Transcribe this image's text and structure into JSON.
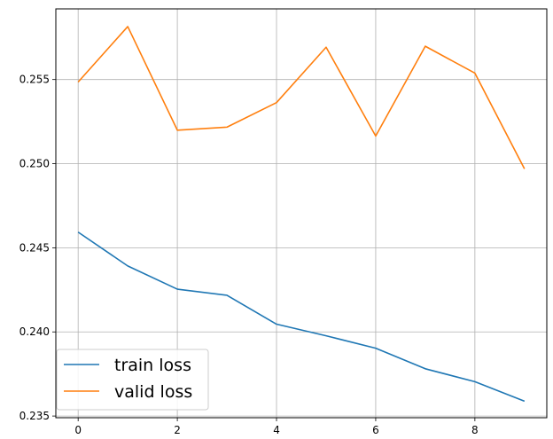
{
  "chart_data": {
    "type": "line",
    "title": "",
    "xlabel": "",
    "ylabel": "",
    "x": [
      0,
      1,
      2,
      3,
      4,
      5,
      6,
      7,
      8,
      9
    ],
    "xlim": [
      -0.45,
      9.45
    ],
    "ylim": [
      0.2349,
      0.2592
    ],
    "xticks": [
      0,
      2,
      4,
      6,
      8
    ],
    "xtick_labels": [
      "0",
      "2",
      "4",
      "6",
      "8"
    ],
    "yticks": [
      0.235,
      0.24,
      0.245,
      0.25,
      0.255
    ],
    "ytick_labels": [
      "0.235",
      "0.240",
      "0.245",
      "0.250",
      "0.255"
    ],
    "grid": true,
    "legend": {
      "placement": "lower-left"
    },
    "series": [
      {
        "name": "train loss",
        "color": "#1f77b4",
        "values": [
          0.24593,
          0.24392,
          0.24254,
          0.24218,
          0.24046,
          0.23977,
          0.23903,
          0.23781,
          0.23704,
          0.23588
        ]
      },
      {
        "name": "valid loss",
        "color": "#ff7f0e",
        "values": [
          0.25485,
          0.25815,
          0.25199,
          0.25217,
          0.25363,
          0.25692,
          0.25164,
          0.25698,
          0.25538,
          0.24969
        ]
      }
    ]
  }
}
